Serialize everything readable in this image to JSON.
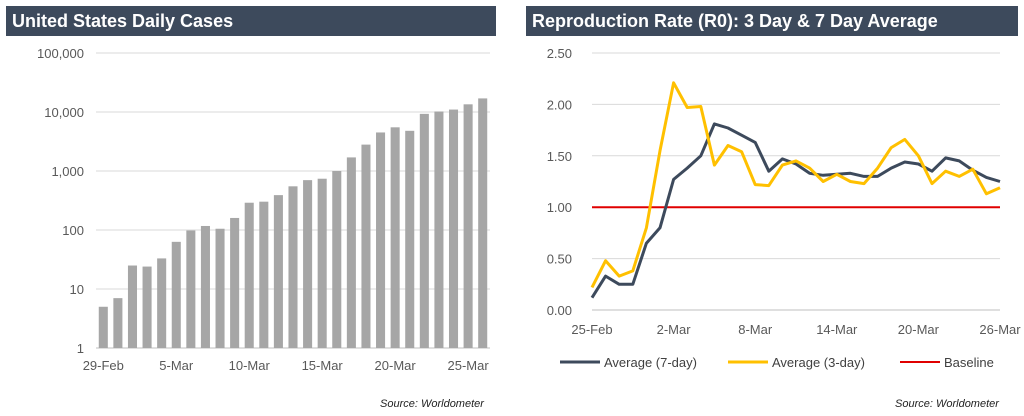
{
  "colors": {
    "title_bg": "#3d4a5c",
    "bar": "#a6a6a6",
    "grid": "#d9d9d9",
    "series_7day": "#3d4a5c",
    "series_3day": "#ffc000",
    "baseline": "#e00000"
  },
  "left": {
    "title": "United States Daily Cases",
    "source": "Source: Worldometer"
  },
  "right": {
    "title": "Reproduction Rate (R0): 3 Day & 7 Day Average",
    "source": "Source: Worldometer"
  },
  "chart_data": [
    {
      "type": "bar",
      "title": "United States Daily Cases",
      "yscale": "log",
      "ylim": [
        1,
        100000
      ],
      "yticks": [
        "1",
        "10",
        "100",
        "1,000",
        "10,000",
        "100,000"
      ],
      "xticks": [
        "29-Feb",
        "5-Mar",
        "10-Mar",
        "15-Mar",
        "20-Mar",
        "25-Mar"
      ],
      "grid": true,
      "values": [
        5,
        7,
        25,
        24,
        33,
        63,
        98,
        117,
        105,
        160,
        290,
        302,
        390,
        550,
        700,
        740,
        1000,
        1700,
        2800,
        4500,
        5500,
        4800,
        9300,
        10200,
        11000,
        13500,
        17000
      ]
    },
    {
      "type": "line",
      "title": "Reproduction Rate (R0): 3 Day & 7 Day Average",
      "ylim": [
        0,
        2.5
      ],
      "yticks": [
        "0.00",
        "0.50",
        "1.00",
        "1.50",
        "2.00",
        "2.50"
      ],
      "xticks": [
        "25-Feb",
        "2-Mar",
        "8-Mar",
        "14-Mar",
        "20-Mar",
        "26-Mar"
      ],
      "grid": true,
      "legend": "bottom",
      "series": [
        {
          "name": "Average (7-day)",
          "values": [
            0.12,
            0.33,
            0.25,
            0.25,
            0.65,
            0.8,
            1.27,
            1.38,
            1.5,
            1.81,
            1.77,
            1.7,
            1.63,
            1.35,
            1.47,
            1.42,
            1.33,
            1.31,
            1.32,
            1.33,
            1.3,
            1.3,
            1.38,
            1.44,
            1.42,
            1.35,
            1.48,
            1.45,
            1.36,
            1.29,
            1.25
          ]
        },
        {
          "name": "Average (3-day)",
          "values": [
            0.22,
            0.48,
            0.33,
            0.38,
            0.8,
            1.55,
            2.21,
            1.97,
            1.98,
            1.41,
            1.6,
            1.54,
            1.22,
            1.21,
            1.41,
            1.45,
            1.38,
            1.25,
            1.32,
            1.25,
            1.23,
            1.38,
            1.58,
            1.66,
            1.5,
            1.23,
            1.35,
            1.3,
            1.37,
            1.13,
            1.19
          ]
        },
        {
          "name": "Baseline",
          "values": [
            1.0,
            1.0
          ]
        }
      ]
    }
  ]
}
